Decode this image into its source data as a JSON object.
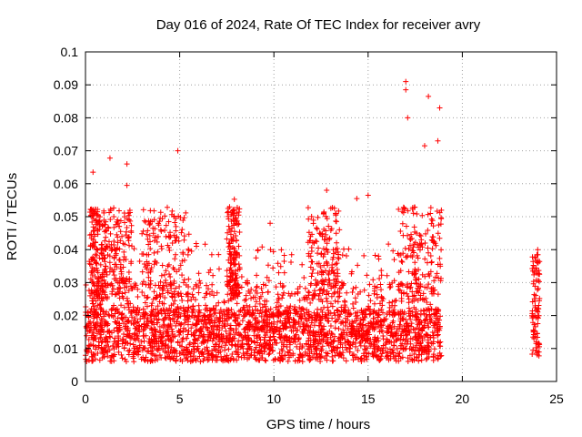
{
  "chart_data": {
    "type": "scatter",
    "title": "Day 016 of 2024, Rate Of TEC Index for receiver avry",
    "xlabel": "GPS time / hours",
    "ylabel": "ROTI / TECUs",
    "xlim": [
      0,
      25
    ],
    "ylim": [
      0,
      0.1
    ],
    "xticks": [
      0,
      5,
      10,
      15,
      20,
      25
    ],
    "xtick_labels": [
      "0",
      "5",
      "10",
      "15",
      "20",
      "25"
    ],
    "yticks": [
      0,
      0.01,
      0.02,
      0.03,
      0.04,
      0.05,
      0.06,
      0.07,
      0.08,
      0.09,
      0.1
    ],
    "ytick_labels": [
      "0",
      "0.01",
      "0.02",
      "0.03",
      "0.04",
      "0.05",
      "0.06",
      "0.07",
      "0.08",
      "0.09",
      "0.1"
    ],
    "grid": true,
    "marker": "+",
    "series_color": "#ff0000",
    "data_segments": [
      {
        "x_start": 0.0,
        "x_end": 18.9,
        "typical_range": [
          0.005,
          0.025
        ]
      },
      {
        "x_start": 23.7,
        "x_end": 24.1,
        "typical_range": [
          0.007,
          0.03
        ]
      }
    ],
    "notable_points": [
      {
        "x": 0.4,
        "y": 0.0635
      },
      {
        "x": 1.3,
        "y": 0.0678
      },
      {
        "x": 2.2,
        "y": 0.066
      },
      {
        "x": 2.2,
        "y": 0.0595
      },
      {
        "x": 4.9,
        "y": 0.07
      },
      {
        "x": 7.9,
        "y": 0.0553
      },
      {
        "x": 9.8,
        "y": 0.048
      },
      {
        "x": 12.8,
        "y": 0.058
      },
      {
        "x": 14.4,
        "y": 0.0555
      },
      {
        "x": 15.0,
        "y": 0.0565
      },
      {
        "x": 17.0,
        "y": 0.091
      },
      {
        "x": 17.0,
        "y": 0.0885
      },
      {
        "x": 17.1,
        "y": 0.08
      },
      {
        "x": 18.2,
        "y": 0.0865
      },
      {
        "x": 18.8,
        "y": 0.083
      },
      {
        "x": 18.0,
        "y": 0.0715
      },
      {
        "x": 18.7,
        "y": 0.073
      },
      {
        "x": 24.0,
        "y": 0.04
      }
    ]
  }
}
